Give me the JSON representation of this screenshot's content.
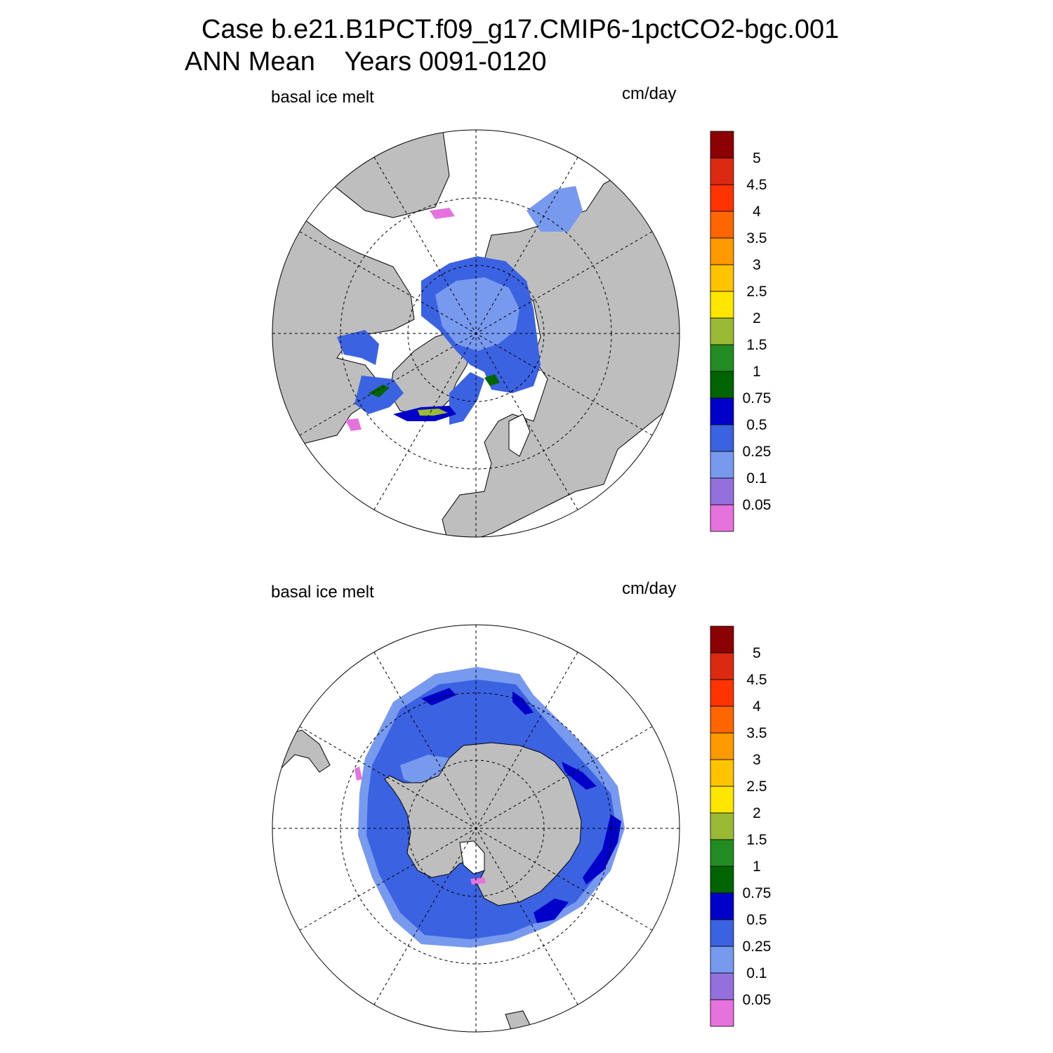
{
  "title": {
    "line1": "Case b.e21.B1PCT.f09_g17.CMIP6-1pctCO2-bgc.001",
    "line2": "ANN Mean    Years 0091-0120"
  },
  "panels": [
    {
      "id": "north",
      "variable": "basal ice melt",
      "units": "cm/day"
    },
    {
      "id": "south",
      "variable": "basal ice melt",
      "units": "cm/day"
    }
  ],
  "colorbar": {
    "levels": [
      "0.05",
      "0.1",
      "0.25",
      "0.5",
      "0.75",
      "1",
      "1.5",
      "2",
      "2.5",
      "3",
      "3.5",
      "4",
      "4.5",
      "5"
    ],
    "colors": [
      "#e673dd",
      "#9370db",
      "#7799ee",
      "#3b62e1",
      "#0000c8",
      "#006400",
      "#228b22",
      "#9aba35",
      "#ffe600",
      "#ffc300",
      "#ff9900",
      "#ff6600",
      "#ff3300",
      "#dc2a10",
      "#8b0000"
    ]
  },
  "map_colors": {
    "land": "#bebebe",
    "ocean": "#ffffff",
    "melt_low": "#7799ee",
    "melt_mid": "#3b62e1",
    "melt_high": "#0000c8",
    "melt_min": "#e673dd"
  }
}
